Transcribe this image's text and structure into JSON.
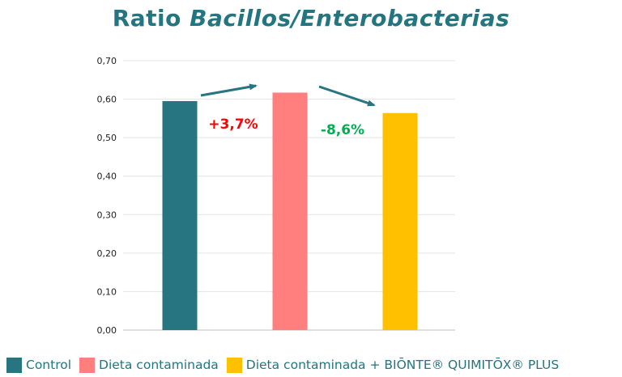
{
  "title": {
    "prefix": "Ratio ",
    "italic": "Bacillos/Enterobacterias"
  },
  "chart_data": {
    "type": "bar",
    "categories": [
      "Control",
      "Dieta contaminada",
      "Dieta contaminada + BIŌNTE® QUIMITŌX® PLUS"
    ],
    "values": [
      0.595,
      0.617,
      0.564
    ],
    "colors": [
      "#267580",
      "#FF7F7F",
      "#FFC000"
    ],
    "ylim": [
      0,
      0.7
    ],
    "yticks": [
      0,
      0.1,
      0.2,
      0.3,
      0.4,
      0.5,
      0.6,
      0.7
    ],
    "ytick_labels": [
      "0,00",
      "0,10",
      "0,20",
      "0,30",
      "0,40",
      "0,50",
      "0,60",
      "0,70"
    ],
    "grid": true,
    "legend_position": "bottom",
    "annotations": [
      {
        "text": "+3,7%",
        "color": "#FF0000"
      },
      {
        "text": "-8,6%",
        "color": "#00B050"
      }
    ],
    "arrow_color": "#267580"
  }
}
